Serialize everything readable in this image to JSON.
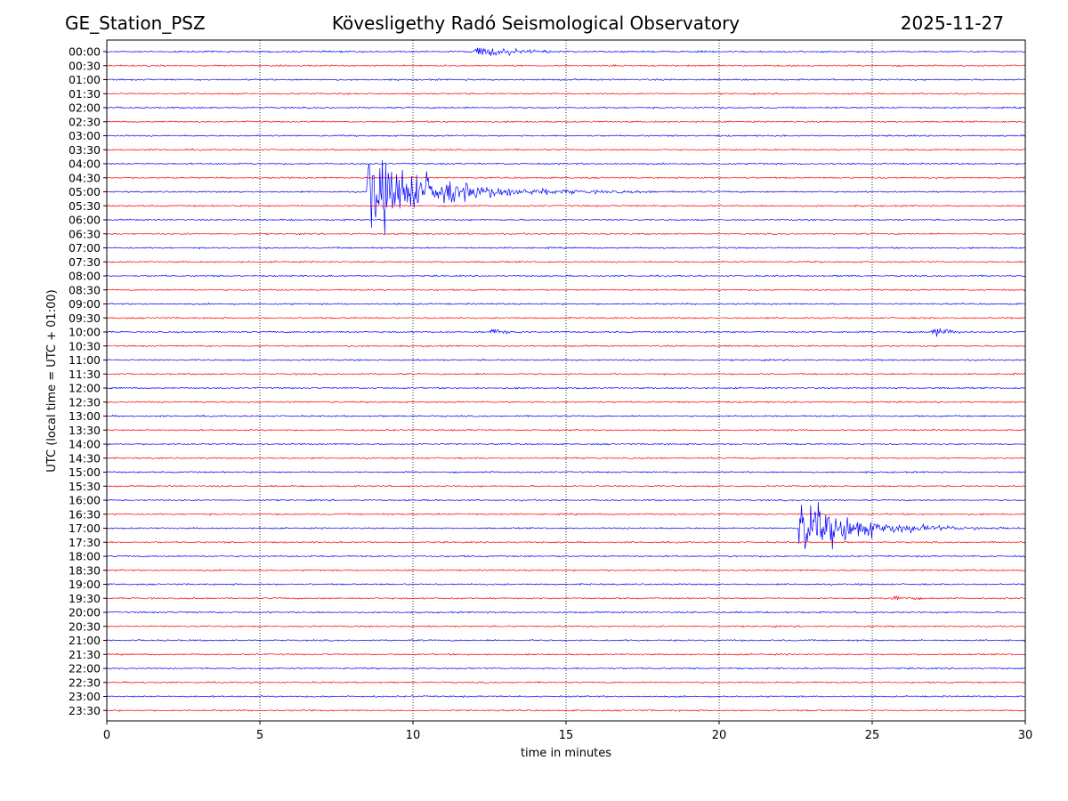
{
  "header": {
    "station": "GE_Station_PSZ",
    "title": "Kövesligethy Radó Seismological Observatory",
    "date": "2025-11-27"
  },
  "chart_data": {
    "type": "line",
    "title": "Kövesligethy Radó Seismological Observatory",
    "xlabel": "time in minutes",
    "ylabel": "UTC (local time = UTC + 01:00)",
    "xlim": [
      0,
      30
    ],
    "x_ticks": [
      "0",
      "5",
      "10",
      "15",
      "20",
      "25",
      "30"
    ],
    "x_tick_values": [
      0,
      5,
      10,
      15,
      20,
      25,
      30
    ],
    "grid": "vertical dotted",
    "trace_colors": [
      "#0000ff",
      "#ff0000"
    ],
    "rows": [
      "00:00",
      "00:30",
      "01:00",
      "01:30",
      "02:00",
      "02:30",
      "03:00",
      "03:30",
      "04:00",
      "04:30",
      "05:00",
      "05:30",
      "06:00",
      "06:30",
      "07:00",
      "07:30",
      "08:00",
      "08:30",
      "09:00",
      "09:30",
      "10:00",
      "10:30",
      "11:00",
      "11:30",
      "12:00",
      "12:30",
      "13:00",
      "13:30",
      "14:00",
      "14:30",
      "15:00",
      "15:30",
      "16:00",
      "16:30",
      "17:00",
      "17:30",
      "18:00",
      "18:30",
      "19:00",
      "19:30",
      "20:00",
      "20:30",
      "21:00",
      "21:30",
      "22:00",
      "22:30",
      "23:00",
      "23:30"
    ],
    "events": [
      {
        "row": 0,
        "start_min": 12.0,
        "end_min": 14.5,
        "peak_rows": 0.8,
        "decay_min": 1.0
      },
      {
        "row": 10,
        "start_min": 8.5,
        "end_min": 20.5,
        "peak_rows": 4.8,
        "decay_min": 2.0
      },
      {
        "row": 20,
        "start_min": 12.5,
        "end_min": 13.6,
        "peak_rows": 0.35,
        "decay_min": 0.6
      },
      {
        "row": 20,
        "start_min": 26.9,
        "end_min": 27.9,
        "peak_rows": 0.6,
        "decay_min": 0.5
      },
      {
        "row": 34,
        "start_min": 22.6,
        "end_min": 30.0,
        "peak_rows": 3.6,
        "decay_min": 1.6
      },
      {
        "row": 39,
        "start_min": 25.6,
        "end_min": 26.6,
        "peak_rows": 0.45,
        "decay_min": 0.5
      }
    ]
  }
}
